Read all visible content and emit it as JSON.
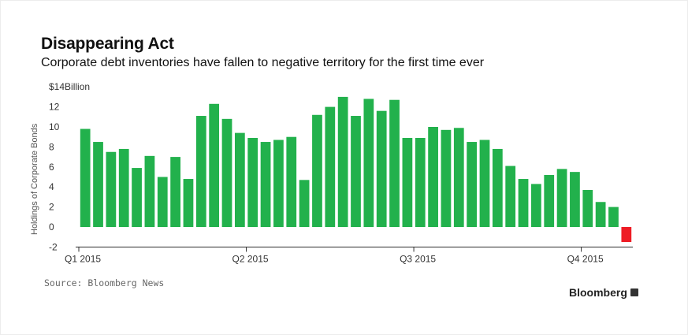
{
  "title": "Disappearing Act",
  "subtitle": "Corporate debt inventories have fallen to negative territory for the first time ever",
  "source": "Source: Bloomberg News",
  "brand": "Bloomberg",
  "colors": {
    "positive": "#22b14c",
    "negative": "#ee1c25"
  },
  "chart_data": {
    "type": "bar",
    "ylabel": "Holdings of Corporate Bonds",
    "ylim": [
      -2,
      14
    ],
    "y_ticks": [
      {
        "value": 14,
        "label": "$14Billion"
      },
      {
        "value": 12,
        "label": "12"
      },
      {
        "value": 10,
        "label": "10"
      },
      {
        "value": 8,
        "label": "8"
      },
      {
        "value": 6,
        "label": "6"
      },
      {
        "value": 4,
        "label": "4"
      },
      {
        "value": 2,
        "label": "2"
      },
      {
        "value": 0,
        "label": "0"
      },
      {
        "value": -2,
        "label": "-2"
      }
    ],
    "x_ticks": [
      {
        "index": 0,
        "label": "Q1 2015"
      },
      {
        "index": 13,
        "label": "Q2 2015"
      },
      {
        "index": 26,
        "label": "Q3 2015"
      },
      {
        "index": 39,
        "label": "Q4 2015"
      }
    ],
    "values": [
      9.8,
      8.5,
      7.5,
      7.8,
      5.9,
      7.1,
      5.0,
      7.0,
      4.8,
      11.1,
      12.3,
      10.8,
      9.4,
      8.9,
      8.5,
      8.7,
      9.0,
      4.7,
      11.2,
      12.0,
      13.0,
      11.1,
      12.8,
      11.6,
      12.7,
      8.9,
      8.9,
      10.0,
      9.7,
      9.9,
      8.5,
      8.7,
      7.8,
      6.1,
      4.8,
      4.3,
      5.2,
      5.8,
      5.5,
      3.7,
      2.5,
      2.0,
      -1.5
    ],
    "grid": false,
    "legend": "none"
  }
}
